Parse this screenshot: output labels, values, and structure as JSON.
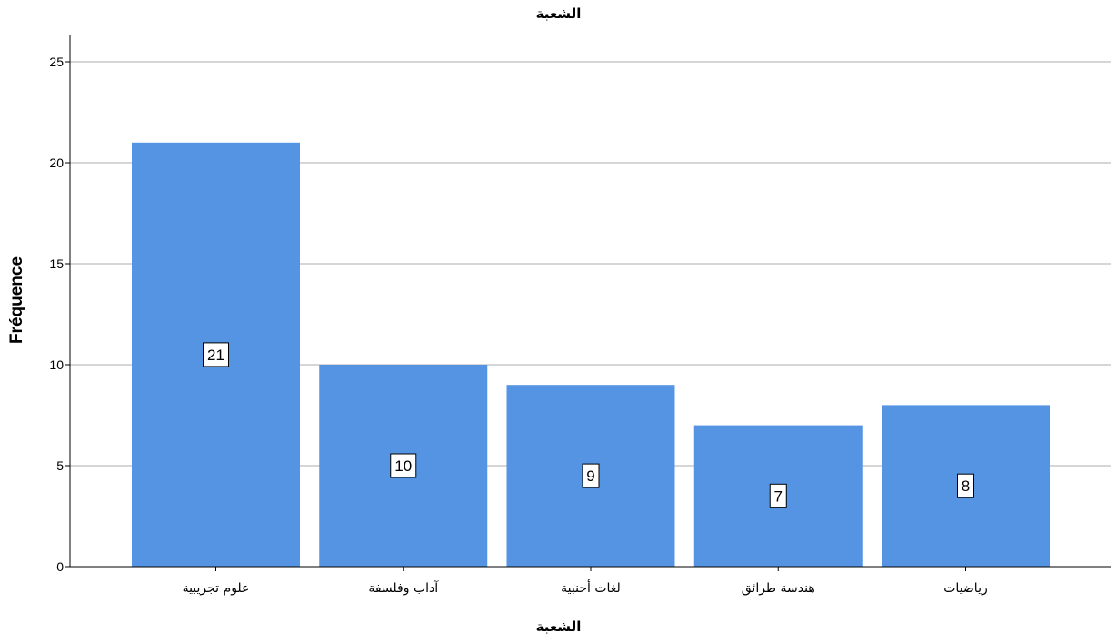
{
  "chart_data": {
    "type": "bar",
    "title": "الشعبة",
    "xlabel": "الشعبة",
    "ylabel": "Fréquence",
    "categories": [
      "علوم تجريبية",
      "آداب وفلسفة",
      "لغات أجنبية",
      "هندسة طرائق",
      "رياضيات"
    ],
    "values": [
      21,
      10,
      9,
      7,
      8
    ],
    "data_labels": [
      "21",
      "10",
      "9",
      "7",
      "8"
    ],
    "yticks": [
      "0",
      "5",
      "10",
      "15",
      "20",
      "25"
    ],
    "ylim": [
      0,
      26.3
    ],
    "grid": true,
    "bar_color": "#5494E3",
    "grid_color": "#C8C8C8",
    "axis_color": "#000000"
  }
}
